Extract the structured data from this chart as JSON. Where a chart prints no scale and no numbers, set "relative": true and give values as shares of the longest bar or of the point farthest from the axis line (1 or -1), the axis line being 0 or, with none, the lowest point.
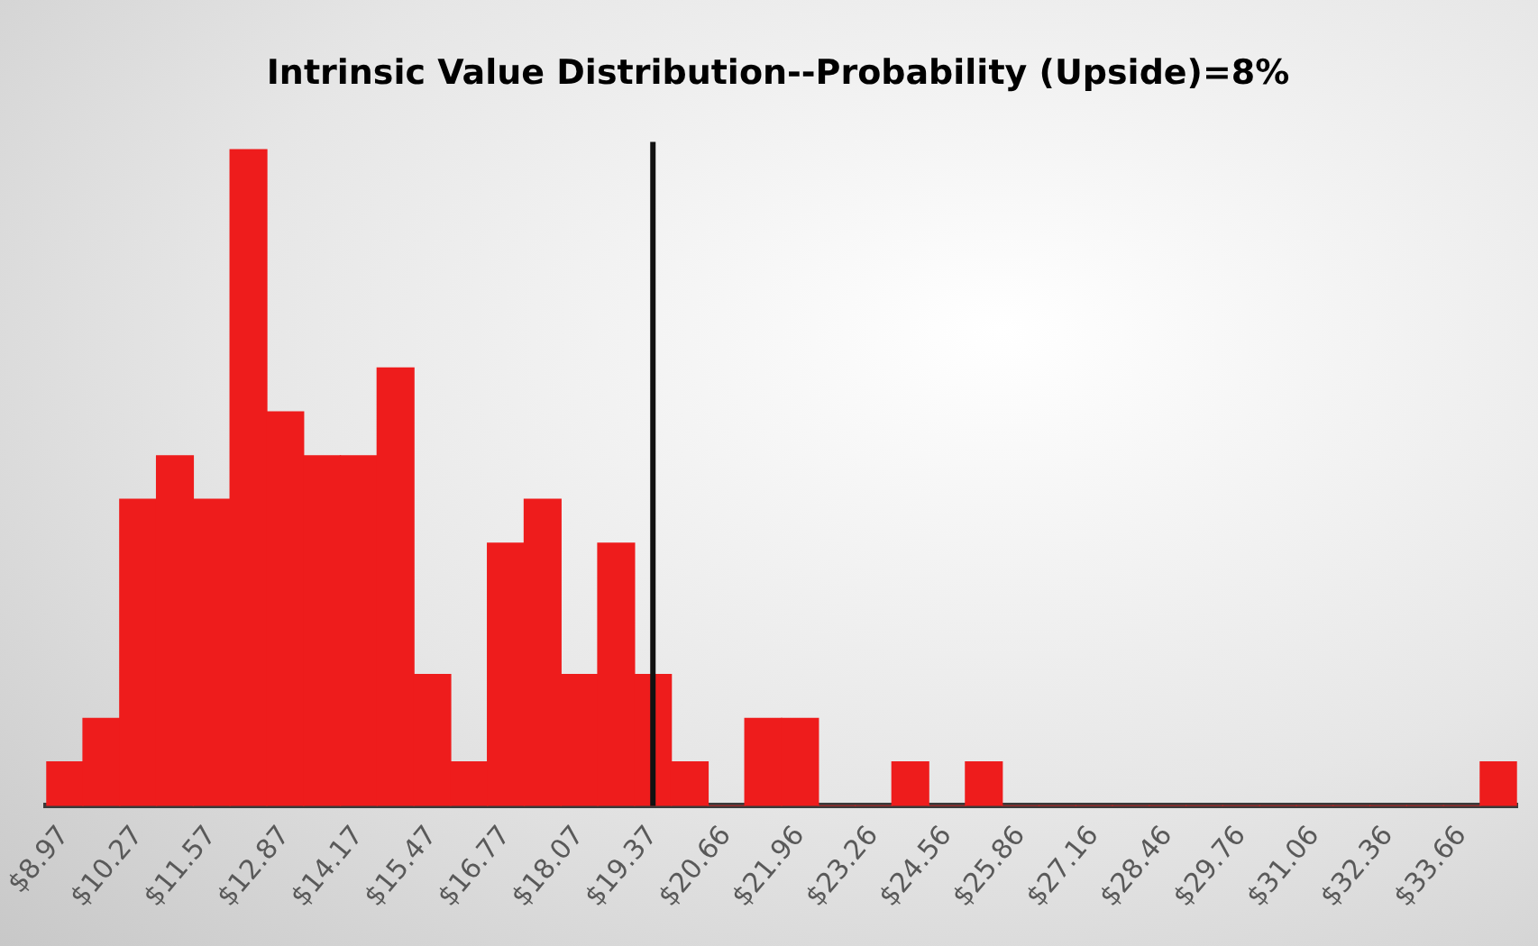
{
  "chart_data": {
    "type": "bar",
    "title": "Intrinsic Value Distribution--Probability (Upside)=8%",
    "categories": [
      "$8.97",
      null,
      "$10.27",
      null,
      "$11.57",
      null,
      "$12.87",
      null,
      "$14.17",
      null,
      "$15.47",
      null,
      "$16.77",
      null,
      "$18.07",
      null,
      "$19.37",
      null,
      "$20.66",
      null,
      "$21.96",
      null,
      "$23.26",
      null,
      "$24.56",
      null,
      "$25.86",
      null,
      "$27.16",
      null,
      "$28.46",
      null,
      "$29.76",
      null,
      "$31.06",
      null,
      "$32.36",
      null,
      "$33.66",
      null
    ],
    "values": [
      0.067,
      0.133,
      0.467,
      0.533,
      0.467,
      1,
      0.6,
      0.533,
      0.533,
      0.667,
      0.2,
      0.067,
      0.4,
      0.467,
      0.2,
      0.4,
      0.2,
      0.067,
      0,
      0.133,
      0.133,
      0,
      0,
      0.067,
      0,
      0.067,
      0,
      0,
      0,
      0,
      0,
      0,
      0,
      0,
      0,
      0,
      0,
      0,
      0,
      0.067
    ],
    "relative": true,
    "color": "#ee1c1c",
    "ref_lines": [
      {
        "axis": "x",
        "value": "$19.37",
        "color": "#111111"
      }
    ],
    "grid": false,
    "legend": false
  }
}
